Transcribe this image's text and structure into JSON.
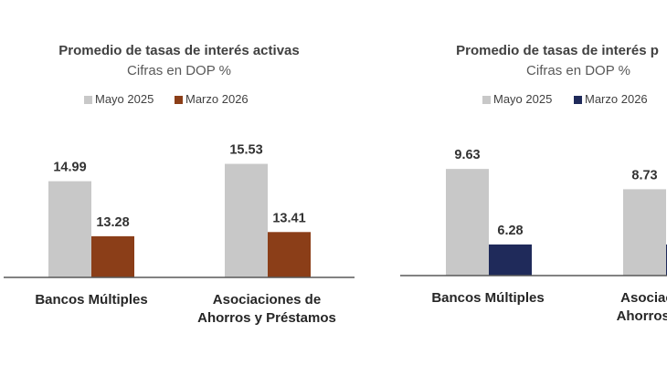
{
  "colors": {
    "mayo": "#c8c8c8",
    "marzo_activas": "#8b3e18",
    "marzo_pasivas": "#1f2a5a",
    "axis": "#595959"
  },
  "chart_data": [
    {
      "type": "bar",
      "title": "Promedio de tasas de interés activas",
      "subtitle": "Cifras en DOP %",
      "categories": [
        "Bancos Múltiples",
        "Asociaciones de|Ahorros y Préstamos"
      ],
      "series": [
        {
          "name": "Mayo 2025",
          "values": [
            14.99,
            15.53
          ],
          "labels": [
            "14.99",
            "15.53"
          ],
          "color": "#c8c8c8"
        },
        {
          "name": "Marzo 2026",
          "values": [
            13.28,
            13.41
          ],
          "labels": [
            "13.28",
            "13.41"
          ],
          "color": "#8b3e18"
        }
      ],
      "ylim": [
        12,
        16
      ],
      "legend_position": "top"
    },
    {
      "type": "bar",
      "title": "Promedio de tasas de interés p",
      "subtitle": "Cifras en DOP %",
      "categories": [
        "Bancos Múltiples",
        "Asociaci|Ahorros y"
      ],
      "series": [
        {
          "name": "Mayo 2025",
          "values": [
            9.63,
            8.73
          ],
          "labels": [
            "9.63",
            "8.73"
          ],
          "color": "#c8c8c8"
        },
        {
          "name": "Marzo 2026",
          "values": [
            6.28,
            6.28
          ],
          "labels": [
            "6.28",
            ""
          ],
          "color": "#1f2a5a"
        }
      ],
      "ylim": [
        4.9,
        10
      ],
      "legend_position": "top"
    }
  ]
}
